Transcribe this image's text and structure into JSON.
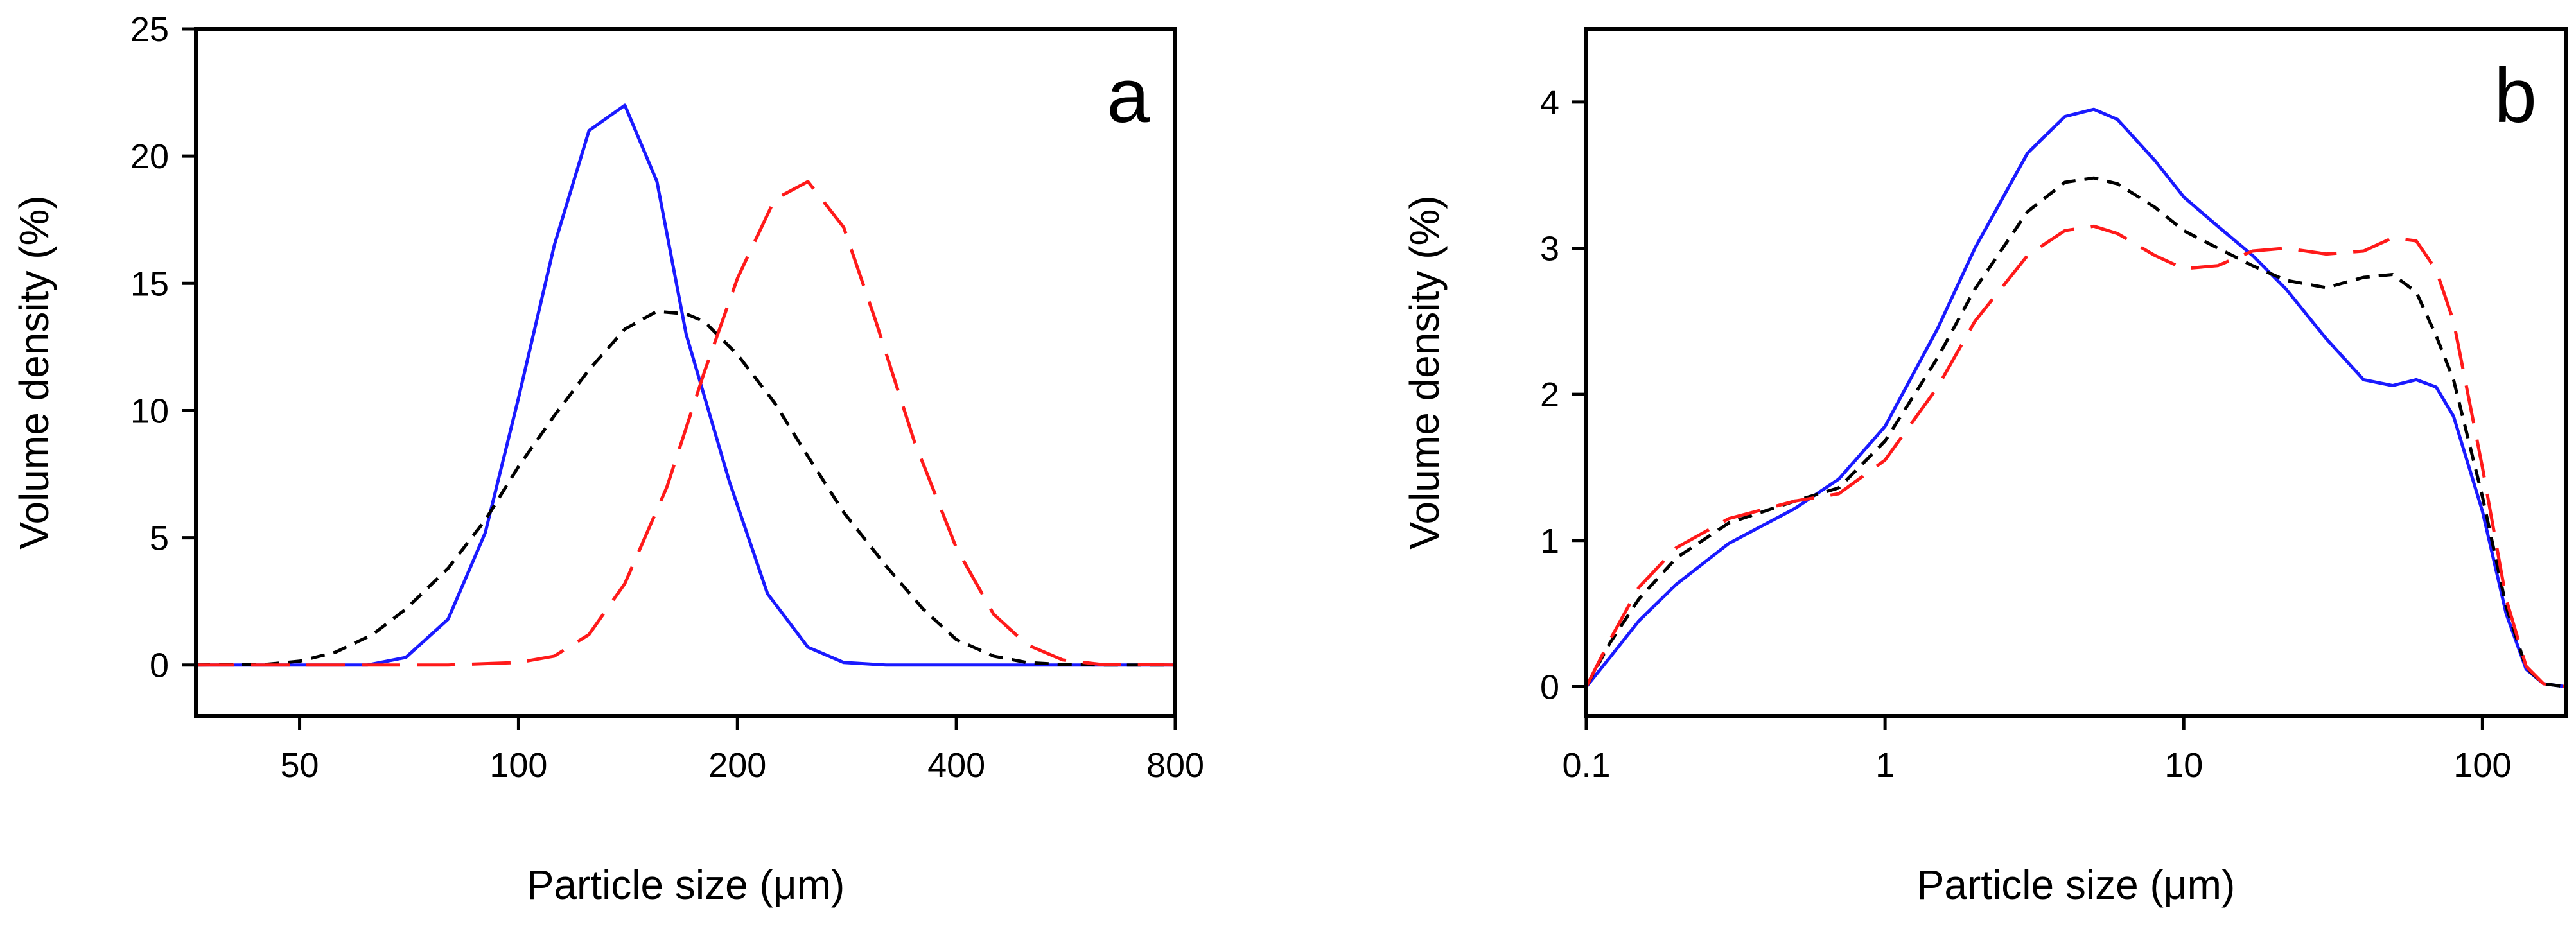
{
  "chart_data": [
    {
      "type": "line",
      "panel_label": "a",
      "xscale": "log",
      "xlabel": "Particle size (μm)",
      "ylabel": "Volume density (%)",
      "xlim": [
        36,
        800
      ],
      "ylim": [
        -2,
        25
      ],
      "xticks": [
        50,
        100,
        200,
        400,
        800
      ],
      "xtick_labels": [
        "50",
        "100",
        "200",
        "400",
        "800"
      ],
      "yticks": [
        0,
        5,
        10,
        15,
        20,
        25
      ],
      "ytick_labels": [
        "0",
        "5",
        "10",
        "15",
        "20",
        "25"
      ],
      "series": [
        {
          "name": "blue-solid",
          "color": "#1a1aff",
          "dash": "solid",
          "x": [
            36,
            50,
            62,
            70,
            80,
            90,
            100,
            112,
            125,
            140,
            155,
            170,
            195,
            220,
            250,
            280,
            320,
            360,
            450,
            550,
            800
          ],
          "y": [
            0,
            0,
            0,
            0.3,
            1.8,
            5.2,
            10.5,
            16.5,
            21,
            22,
            19,
            13,
            7.2,
            2.8,
            0.7,
            0.1,
            0,
            0,
            0,
            0,
            0
          ]
        },
        {
          "name": "black-short-dash",
          "color": "#000000",
          "dash": "short",
          "x": [
            36,
            45,
            50,
            56,
            63,
            70,
            80,
            90,
            100,
            112,
            125,
            140,
            155,
            170,
            180,
            200,
            225,
            250,
            280,
            320,
            360,
            400,
            450,
            500,
            560,
            630,
            800
          ],
          "y": [
            0,
            0.03,
            0.15,
            0.5,
            1.2,
            2.2,
            3.8,
            5.7,
            7.8,
            9.8,
            11.6,
            13.2,
            13.9,
            13.8,
            13.5,
            12.2,
            10.3,
            8.2,
            6.0,
            3.9,
            2.2,
            1.0,
            0.35,
            0.1,
            0.02,
            0,
            0
          ]
        },
        {
          "name": "red-long-dash",
          "color": "#ff1a1a",
          "dash": "long",
          "x": [
            36,
            50,
            63,
            80,
            100,
            112,
            125,
            140,
            160,
            180,
            200,
            225,
            250,
            280,
            310,
            350,
            400,
            450,
            500,
            560,
            630,
            800
          ],
          "y": [
            0,
            0,
            0,
            0,
            0.1,
            0.35,
            1.2,
            3.2,
            7.0,
            11.5,
            15.2,
            18.3,
            19.0,
            17.2,
            13.5,
            8.8,
            4.6,
            2.0,
            0.8,
            0.2,
            0.03,
            0
          ]
        }
      ]
    },
    {
      "type": "line",
      "panel_label": "b",
      "xscale": "log",
      "xlabel": "Particle size (μm)",
      "ylabel": "Volume density (%)",
      "xlim": [
        0.1,
        190
      ],
      "ylim": [
        -0.2,
        4.5
      ],
      "xticks": [
        0.1,
        1,
        10,
        100
      ],
      "xtick_labels": [
        "0.1",
        "1",
        "10",
        "100"
      ],
      "yticks": [
        0,
        1,
        2,
        3,
        4
      ],
      "ytick_labels": [
        "0",
        "1",
        "2",
        "3",
        "4"
      ],
      "series": [
        {
          "name": "blue-solid",
          "color": "#1a1aff",
          "dash": "solid",
          "x": [
            0.1,
            0.12,
            0.15,
            0.2,
            0.3,
            0.5,
            0.7,
            1,
            1.5,
            2,
            3,
            4,
            5,
            6,
            8,
            10,
            13,
            17,
            22,
            30,
            40,
            50,
            60,
            70,
            80,
            100,
            120,
            140,
            160,
            190
          ],
          "y": [
            0,
            0.2,
            0.45,
            0.7,
            0.98,
            1.22,
            1.42,
            1.78,
            2.45,
            3.0,
            3.65,
            3.9,
            3.95,
            3.88,
            3.6,
            3.35,
            3.15,
            2.95,
            2.72,
            2.38,
            2.1,
            2.06,
            2.1,
            2.05,
            1.85,
            1.2,
            0.5,
            0.12,
            0.02,
            0
          ]
        },
        {
          "name": "black-short-dash",
          "color": "#000000",
          "dash": "short",
          "x": [
            0.1,
            0.12,
            0.15,
            0.2,
            0.3,
            0.5,
            0.7,
            1,
            1.5,
            2,
            3,
            4,
            5,
            6,
            8,
            10,
            13,
            17,
            22,
            30,
            40,
            50,
            60,
            70,
            80,
            100,
            120,
            140,
            160,
            190
          ],
          "y": [
            0,
            0.3,
            0.6,
            0.88,
            1.12,
            1.27,
            1.36,
            1.68,
            2.25,
            2.72,
            3.25,
            3.45,
            3.48,
            3.44,
            3.28,
            3.12,
            3.0,
            2.88,
            2.78,
            2.73,
            2.8,
            2.82,
            2.7,
            2.4,
            2.1,
            1.3,
            0.55,
            0.13,
            0.02,
            0
          ]
        },
        {
          "name": "red-long-dash",
          "color": "#ff1a1a",
          "dash": "long",
          "x": [
            0.1,
            0.12,
            0.15,
            0.2,
            0.3,
            0.5,
            0.7,
            1,
            1.5,
            2,
            3,
            4,
            5,
            6,
            8,
            10,
            13,
            17,
            22,
            30,
            40,
            50,
            60,
            70,
            80,
            100,
            120,
            140,
            160,
            190
          ],
          "y": [
            0,
            0.32,
            0.68,
            0.95,
            1.15,
            1.27,
            1.32,
            1.55,
            2.05,
            2.5,
            2.95,
            3.12,
            3.15,
            3.1,
            2.95,
            2.86,
            2.88,
            2.98,
            3.0,
            2.96,
            2.98,
            3.07,
            3.05,
            2.85,
            2.5,
            1.5,
            0.6,
            0.14,
            0.02,
            0
          ]
        }
      ]
    }
  ]
}
